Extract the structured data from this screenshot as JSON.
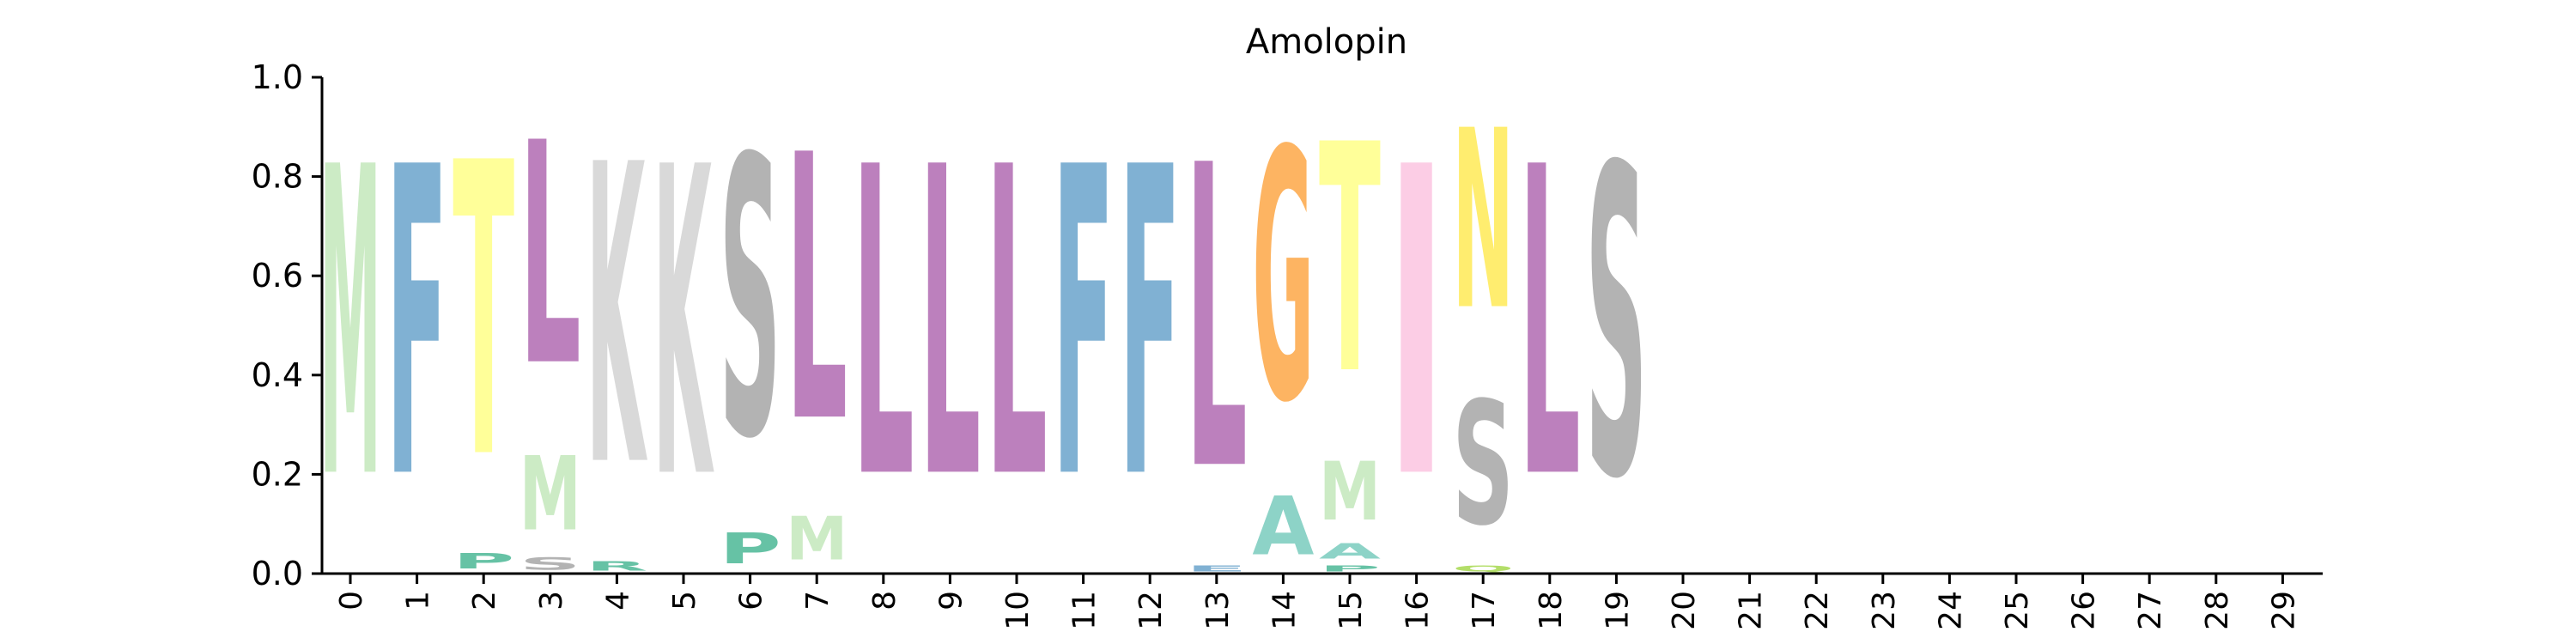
{
  "chart_data": {
    "type": "sequence-logo",
    "title": "Amolopin",
    "xlabel": "",
    "ylabel": "",
    "ylim": [
      0,
      1
    ],
    "yticks": [
      "0.0",
      "0.2",
      "0.4",
      "0.6",
      "0.8",
      "1.0"
    ],
    "positions": [
      "0",
      "1",
      "2",
      "3",
      "4",
      "5",
      "6",
      "7",
      "8",
      "9",
      "10",
      "11",
      "12",
      "13",
      "14",
      "15",
      "16",
      "17",
      "18",
      "19",
      "20",
      "21",
      "22",
      "23",
      "24",
      "25",
      "26",
      "27",
      "28",
      "29"
    ],
    "residue_colors": {
      "M": "#ccebc5",
      "F": "#80b1d3",
      "T": "#ffff99",
      "L": "#bc80bd",
      "K": "#d9d9d9",
      "S": "#b3b3b3",
      "P": "#66c2a5",
      "G": "#fdb462",
      "A": "#8dd3c7",
      "E": "#80b1d3",
      "I": "#fccde5",
      "N": "#ffed6f",
      "Q": "#b3de69",
      "R": "#66c2a5"
    },
    "columns": [
      {
        "position": 0,
        "letters": [
          {
            "residue": "M",
            "value": 1.0
          }
        ]
      },
      {
        "position": 1,
        "letters": [
          {
            "residue": "F",
            "value": 1.0
          }
        ]
      },
      {
        "position": 2,
        "letters": [
          {
            "residue": "P",
            "value": 0.05
          },
          {
            "residue": "T",
            "value": 0.95
          }
        ]
      },
      {
        "position": 3,
        "letters": [
          {
            "residue": "S",
            "value": 0.04
          },
          {
            "residue": "M",
            "value": 0.24
          },
          {
            "residue": "L",
            "value": 0.72
          }
        ]
      },
      {
        "position": 4,
        "letters": [
          {
            "residue": "R",
            "value": 0.03
          },
          {
            "residue": "K",
            "value": 0.97
          }
        ]
      },
      {
        "position": 5,
        "letters": [
          {
            "residue": "K",
            "value": 1.0
          }
        ]
      },
      {
        "position": 6,
        "letters": [
          {
            "residue": "P",
            "value": 0.1
          },
          {
            "residue": "S",
            "value": 0.9
          }
        ]
      },
      {
        "position": 7,
        "letters": [
          {
            "residue": "M",
            "value": 0.14
          },
          {
            "residue": "L",
            "value": 0.86
          }
        ]
      },
      {
        "position": 8,
        "letters": [
          {
            "residue": "L",
            "value": 1.0
          }
        ]
      },
      {
        "position": 9,
        "letters": [
          {
            "residue": "L",
            "value": 1.0
          }
        ]
      },
      {
        "position": 10,
        "letters": [
          {
            "residue": "L",
            "value": 1.0
          }
        ]
      },
      {
        "position": 11,
        "letters": [
          {
            "residue": "F",
            "value": 1.0
          }
        ]
      },
      {
        "position": 12,
        "letters": [
          {
            "residue": "F",
            "value": 1.0
          }
        ]
      },
      {
        "position": 13,
        "letters": [
          {
            "residue": "E",
            "value": 0.02
          },
          {
            "residue": "L",
            "value": 0.98
          }
        ]
      },
      {
        "position": 14,
        "letters": [
          {
            "residue": "A",
            "value": 0.19
          },
          {
            "residue": "G",
            "value": 0.81
          }
        ]
      },
      {
        "position": 15,
        "letters": [
          {
            "residue": "P",
            "value": 0.02
          },
          {
            "residue": "A",
            "value": 0.05
          },
          {
            "residue": "M",
            "value": 0.19
          },
          {
            "residue": "T",
            "value": 0.74
          }
        ]
      },
      {
        "position": 16,
        "letters": [
          {
            "residue": "I",
            "value": 1.0
          }
        ]
      },
      {
        "position": 17,
        "letters": [
          {
            "residue": "Q",
            "value": 0.02
          },
          {
            "residue": "S",
            "value": 0.4
          },
          {
            "residue": "N",
            "value": 0.58
          }
        ]
      },
      {
        "position": 18,
        "letters": [
          {
            "residue": "L",
            "value": 1.0
          }
        ]
      },
      {
        "position": 19,
        "letters": [
          {
            "residue": "S",
            "value": 1.0
          }
        ]
      }
    ],
    "grid": false,
    "legend": "none"
  }
}
